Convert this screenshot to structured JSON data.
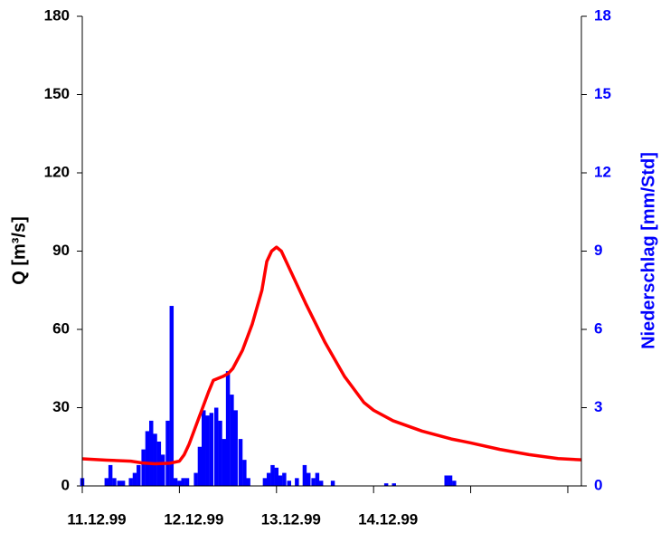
{
  "chart_data": {
    "type": "combo",
    "ylabel": "Q [m³/s]",
    "y2label": "Niederschlag [mm/Std]",
    "xlim": [
      0,
      5.14
    ],
    "xticks": [
      {
        "value": 0,
        "label": "11.12.99"
      },
      {
        "value": 1,
        "label": "12.12.99"
      },
      {
        "value": 2,
        "label": "13.12.99"
      },
      {
        "value": 3,
        "label": "14.12.99"
      },
      {
        "value": 4,
        "label": null
      },
      {
        "value": 5,
        "label": null
      }
    ],
    "ylim": [
      0,
      180
    ],
    "yticks": [
      0,
      30,
      60,
      90,
      120,
      150,
      180
    ],
    "y2lim": [
      0,
      18
    ],
    "y2ticks": [
      0,
      3,
      6,
      9,
      12,
      15,
      18
    ],
    "y2color": "#0000ff",
    "series": [
      {
        "type": "bar",
        "axis": "y2",
        "color": "#0000ff",
        "x": [
          0,
          0.25,
          0.29,
          0.33,
          0.38,
          0.42,
          0.5,
          0.54,
          0.58,
          0.63,
          0.67,
          0.71,
          0.75,
          0.79,
          0.83,
          0.88,
          0.92,
          0.96,
          1.0,
          1.04,
          1.08,
          1.17,
          1.21,
          1.25,
          1.29,
          1.33,
          1.38,
          1.42,
          1.46,
          1.5,
          1.54,
          1.58,
          1.63,
          1.67,
          1.71,
          1.88,
          1.92,
          1.96,
          2.0,
          2.04,
          2.08,
          2.13,
          2.21,
          2.29,
          2.33,
          2.38,
          2.42,
          2.46,
          2.58,
          3.13,
          3.21,
          3.75,
          3.79,
          3.83
        ],
        "values": [
          0.3,
          0.3,
          0.8,
          0.3,
          0.2,
          0.2,
          0.3,
          0.5,
          0.8,
          1.4,
          2.1,
          2.5,
          2.0,
          1.7,
          1.2,
          2.5,
          6.9,
          0.3,
          0.2,
          0.3,
          0.3,
          0.5,
          1.5,
          2.9,
          2.7,
          2.8,
          3.0,
          2.5,
          1.8,
          4.4,
          3.5,
          2.9,
          1.8,
          1.0,
          0.3,
          0.3,
          0.5,
          0.8,
          0.7,
          0.4,
          0.5,
          0.2,
          0.3,
          0.8,
          0.5,
          0.3,
          0.5,
          0.2,
          0.2,
          0.1,
          0.1,
          0.4,
          0.4,
          0.2
        ]
      },
      {
        "type": "line",
        "axis": "y",
        "color": "#ff0000",
        "x": [
          0,
          0.25,
          0.5,
          0.62,
          0.75,
          0.9,
          1.0,
          1.05,
          1.1,
          1.2,
          1.3,
          1.35,
          1.45,
          1.5,
          1.55,
          1.65,
          1.75,
          1.85,
          1.9,
          1.95,
          2.0,
          2.05,
          2.15,
          2.3,
          2.5,
          2.7,
          2.9,
          3.0,
          3.2,
          3.5,
          3.8,
          4.0,
          4.3,
          4.6,
          4.9,
          5.14
        ],
        "values": [
          10.4,
          9.9,
          9.5,
          8.8,
          8.5,
          8.7,
          9.5,
          12,
          16,
          26,
          36,
          40.5,
          42,
          43,
          45,
          52,
          62,
          75,
          86,
          90,
          91.5,
          90,
          82,
          70,
          55,
          42,
          32,
          29,
          25,
          21,
          18,
          16.5,
          14,
          12,
          10.5,
          10
        ]
      }
    ]
  }
}
